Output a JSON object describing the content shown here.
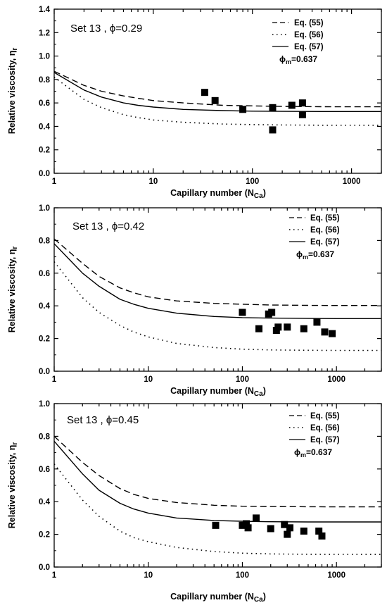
{
  "chart_data": [
    {
      "type": "line",
      "x_scale": "log",
      "xlim": [
        1,
        2000
      ],
      "ylim": [
        0,
        1.4
      ],
      "y_ticks": [
        "0.0",
        "0.2",
        "0.4",
        "0.6",
        "0.8",
        "1.0",
        "1.2",
        "1.4"
      ],
      "x_ticks": [
        "1",
        "10",
        "100",
        "1000"
      ],
      "xlabel": "Capillary number (N",
      "xlabel_sub": "Ca",
      "xlabel_close": ")",
      "ylabel": "Relative viscosity, η",
      "ylabel_sub": "r",
      "annotation": "Set 13 , ϕ=0.29",
      "phi_m_label": "ϕ",
      "phi_m_sub": "m",
      "phi_m_value": "=0.637",
      "legend": [
        {
          "label": "Eq. (55)",
          "style": "dashed"
        },
        {
          "label": "Eq. (56)",
          "style": "dotted"
        },
        {
          "label": "Eq. (57)",
          "style": "solid"
        }
      ],
      "series": [
        {
          "name": "Eq. (55)",
          "style": "dashed",
          "x": [
            1,
            2,
            3,
            5,
            7,
            10,
            20,
            50,
            100,
            200,
            500,
            1000,
            2000
          ],
          "y": [
            0.87,
            0.75,
            0.7,
            0.66,
            0.64,
            0.62,
            0.6,
            0.58,
            0.575,
            0.57,
            0.568,
            0.567,
            0.567
          ]
        },
        {
          "name": "Eq. (56)",
          "style": "dotted",
          "x": [
            1,
            2,
            3,
            5,
            7,
            10,
            20,
            50,
            100,
            200,
            500,
            1000,
            2000
          ],
          "y": [
            0.82,
            0.63,
            0.56,
            0.5,
            0.475,
            0.455,
            0.435,
            0.42,
            0.415,
            0.412,
            0.41,
            0.41,
            0.41
          ]
        },
        {
          "name": "Eq. (57)",
          "style": "solid",
          "x": [
            1,
            2,
            3,
            5,
            7,
            10,
            20,
            50,
            100,
            200,
            500,
            1000,
            2000
          ],
          "y": [
            0.86,
            0.71,
            0.65,
            0.6,
            0.58,
            0.565,
            0.545,
            0.535,
            0.53,
            0.528,
            0.527,
            0.527,
            0.527
          ]
        },
        {
          "name": "Data",
          "style": "markers",
          "x": [
            33,
            42,
            80,
            160,
            160,
            250,
            320,
            320
          ],
          "y": [
            0.69,
            0.62,
            0.545,
            0.56,
            0.37,
            0.58,
            0.6,
            0.5
          ]
        }
      ]
    },
    {
      "type": "line",
      "x_scale": "log",
      "xlim": [
        1,
        3000
      ],
      "ylim": [
        0,
        1.0
      ],
      "y_ticks": [
        "0.0",
        "0.2",
        "0.4",
        "0.6",
        "0.8",
        "1.0"
      ],
      "x_ticks": [
        "1",
        "10",
        "100",
        "1000"
      ],
      "xlabel": "Capillary number (N",
      "xlabel_sub": "Ca",
      "xlabel_close": ")",
      "ylabel": "Relative viscosity, η",
      "ylabel_sub": "r",
      "annotation": "Set 13 , ϕ=0.42",
      "phi_m_label": "ϕ",
      "phi_m_sub": "m",
      "phi_m_value": "=0.637",
      "legend": [
        {
          "label": "Eq. (55)",
          "style": "dashed"
        },
        {
          "label": "Eq. (56)",
          "style": "dotted"
        },
        {
          "label": "Eq. (57)",
          "style": "solid"
        }
      ],
      "series": [
        {
          "name": "Eq. (55)",
          "style": "dashed",
          "x": [
            1,
            2,
            3,
            5,
            7,
            10,
            20,
            50,
            100,
            200,
            500,
            1000,
            3000
          ],
          "y": [
            0.81,
            0.66,
            0.58,
            0.51,
            0.48,
            0.455,
            0.43,
            0.415,
            0.41,
            0.405,
            0.403,
            0.402,
            0.402
          ]
        },
        {
          "name": "Eq. (56)",
          "style": "dotted",
          "x": [
            1,
            2,
            3,
            5,
            7,
            10,
            20,
            50,
            100,
            200,
            500,
            1000,
            3000
          ],
          "y": [
            0.67,
            0.45,
            0.36,
            0.28,
            0.24,
            0.21,
            0.17,
            0.145,
            0.135,
            0.13,
            0.128,
            0.127,
            0.127
          ]
        },
        {
          "name": "Eq. (57)",
          "style": "solid",
          "x": [
            1,
            2,
            3,
            5,
            7,
            10,
            20,
            50,
            100,
            200,
            500,
            1000,
            3000
          ],
          "y": [
            0.78,
            0.6,
            0.52,
            0.44,
            0.41,
            0.385,
            0.355,
            0.335,
            0.328,
            0.325,
            0.323,
            0.322,
            0.322
          ]
        },
        {
          "name": "Data",
          "style": "markers",
          "x": [
            100,
            150,
            190,
            205,
            230,
            240,
            300,
            450,
            620,
            750,
            900
          ],
          "y": [
            0.36,
            0.26,
            0.35,
            0.36,
            0.25,
            0.27,
            0.27,
            0.26,
            0.3,
            0.24,
            0.23
          ]
        }
      ]
    },
    {
      "type": "line",
      "x_scale": "log",
      "xlim": [
        1,
        3000
      ],
      "ylim": [
        0,
        1.0
      ],
      "y_ticks": [
        "0.0",
        "0.2",
        "0.4",
        "0.6",
        "0.8",
        "1.0"
      ],
      "x_ticks": [
        "1",
        "10",
        "100",
        "1000"
      ],
      "xlabel": "Capillary number (N",
      "xlabel_sub": "Ca",
      "xlabel_close": ")",
      "ylabel": "Relative viscosity, η",
      "ylabel_sub": "r",
      "annotation": "Set 13 , ϕ=0.45",
      "phi_m_label": "ϕ",
      "phi_m_sub": "m",
      "phi_m_value": "=0.637",
      "legend": [
        {
          "label": "Eq. (55)",
          "style": "dashed"
        },
        {
          "label": "Eq. (56)",
          "style": "dotted"
        },
        {
          "label": "Eq. (57)",
          "style": "solid"
        }
      ],
      "series": [
        {
          "name": "Eq. (55)",
          "style": "dashed",
          "x": [
            1,
            2,
            3,
            5,
            7,
            10,
            20,
            50,
            100,
            200,
            500,
            1000,
            3000
          ],
          "y": [
            0.8,
            0.64,
            0.56,
            0.48,
            0.445,
            0.42,
            0.395,
            0.378,
            0.372,
            0.37,
            0.369,
            0.368,
            0.368
          ]
        },
        {
          "name": "Eq. (56)",
          "style": "dotted",
          "x": [
            1,
            2,
            3,
            5,
            7,
            10,
            20,
            50,
            100,
            200,
            500,
            1000,
            3000
          ],
          "y": [
            0.63,
            0.41,
            0.31,
            0.22,
            0.18,
            0.155,
            0.12,
            0.095,
            0.085,
            0.08,
            0.078,
            0.077,
            0.077
          ]
        },
        {
          "name": "Eq. (57)",
          "style": "solid",
          "x": [
            1,
            2,
            3,
            5,
            7,
            10,
            20,
            50,
            100,
            200,
            500,
            1000,
            3000
          ],
          "y": [
            0.77,
            0.57,
            0.47,
            0.39,
            0.355,
            0.33,
            0.3,
            0.285,
            0.28,
            0.277,
            0.276,
            0.276,
            0.276
          ]
        },
        {
          "name": "Data",
          "style": "markers",
          "x": [
            52,
            100,
            110,
            115,
            140,
            200,
            280,
            300,
            320,
            450,
            650,
            700
          ],
          "y": [
            0.255,
            0.255,
            0.265,
            0.24,
            0.3,
            0.235,
            0.26,
            0.2,
            0.24,
            0.22,
            0.22,
            0.19
          ]
        }
      ]
    }
  ]
}
